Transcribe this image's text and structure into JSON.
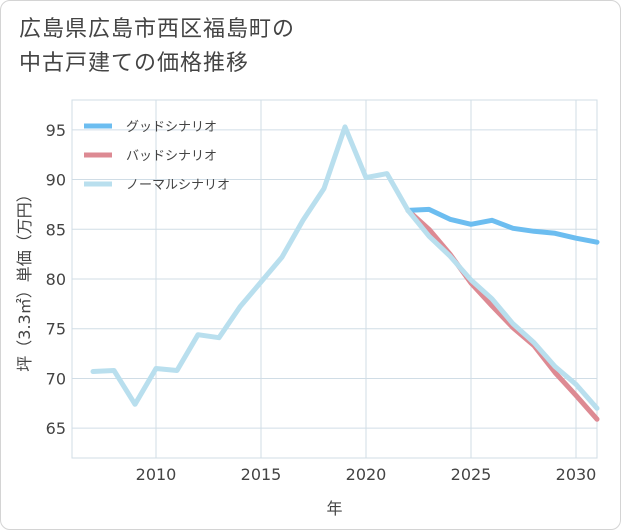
{
  "title_line1": "広島県広島市西区福島町の",
  "title_line2": "中古戸建ての価格推移",
  "colors": {
    "good": "#6cbdf0",
    "bad": "#dd8a93",
    "normal": "#b9dfee",
    "grid": "#d0dde6",
    "axis": "#444444"
  },
  "chart_data": {
    "type": "line",
    "title": "広島県広島市西区福島町の中古戸建ての価格推移",
    "xlabel": "年",
    "ylabel": "坪（3.3㎡）単価（万円）",
    "xlim": [
      2006,
      2031
    ],
    "ylim": [
      62,
      98
    ],
    "xticks": [
      2010,
      2015,
      2020,
      2025,
      2030
    ],
    "yticks": [
      65,
      70,
      75,
      80,
      85,
      90,
      95
    ],
    "series": [
      {
        "name": "グッドシナリオ",
        "color": "#6cbdf0",
        "x": [
          2022,
          2023,
          2024,
          2025,
          2026,
          2027,
          2028,
          2029,
          2030,
          2031
        ],
        "y": [
          86.9,
          87.0,
          86.0,
          85.5,
          85.9,
          85.1,
          84.8,
          84.6,
          84.1,
          83.7
        ]
      },
      {
        "name": "バッドシナリオ",
        "color": "#dd8a93",
        "x": [
          2022,
          2023,
          2024,
          2025,
          2026,
          2027,
          2028,
          2029,
          2030,
          2031
        ],
        "y": [
          86.9,
          85.0,
          82.5,
          79.6,
          77.3,
          75.1,
          73.3,
          70.6,
          68.3,
          65.9
        ]
      },
      {
        "name": "ノーマルシナリオ",
        "color": "#b9dfee",
        "x": [
          2007,
          2008,
          2009,
          2010,
          2011,
          2012,
          2013,
          2014,
          2015,
          2016,
          2017,
          2018,
          2019,
          2020,
          2021,
          2022,
          2023,
          2024,
          2025,
          2026,
          2027,
          2028,
          2029,
          2030,
          2031
        ],
        "y": [
          70.7,
          70.8,
          67.4,
          71.0,
          70.8,
          74.4,
          74.1,
          77.2,
          79.7,
          82.2,
          85.9,
          89.1,
          95.3,
          90.2,
          90.6,
          86.9,
          84.3,
          82.3,
          79.9,
          78.0,
          75.5,
          73.6,
          71.2,
          69.4,
          67.0
        ]
      }
    ],
    "legend_position": "top-left",
    "grid": true
  }
}
